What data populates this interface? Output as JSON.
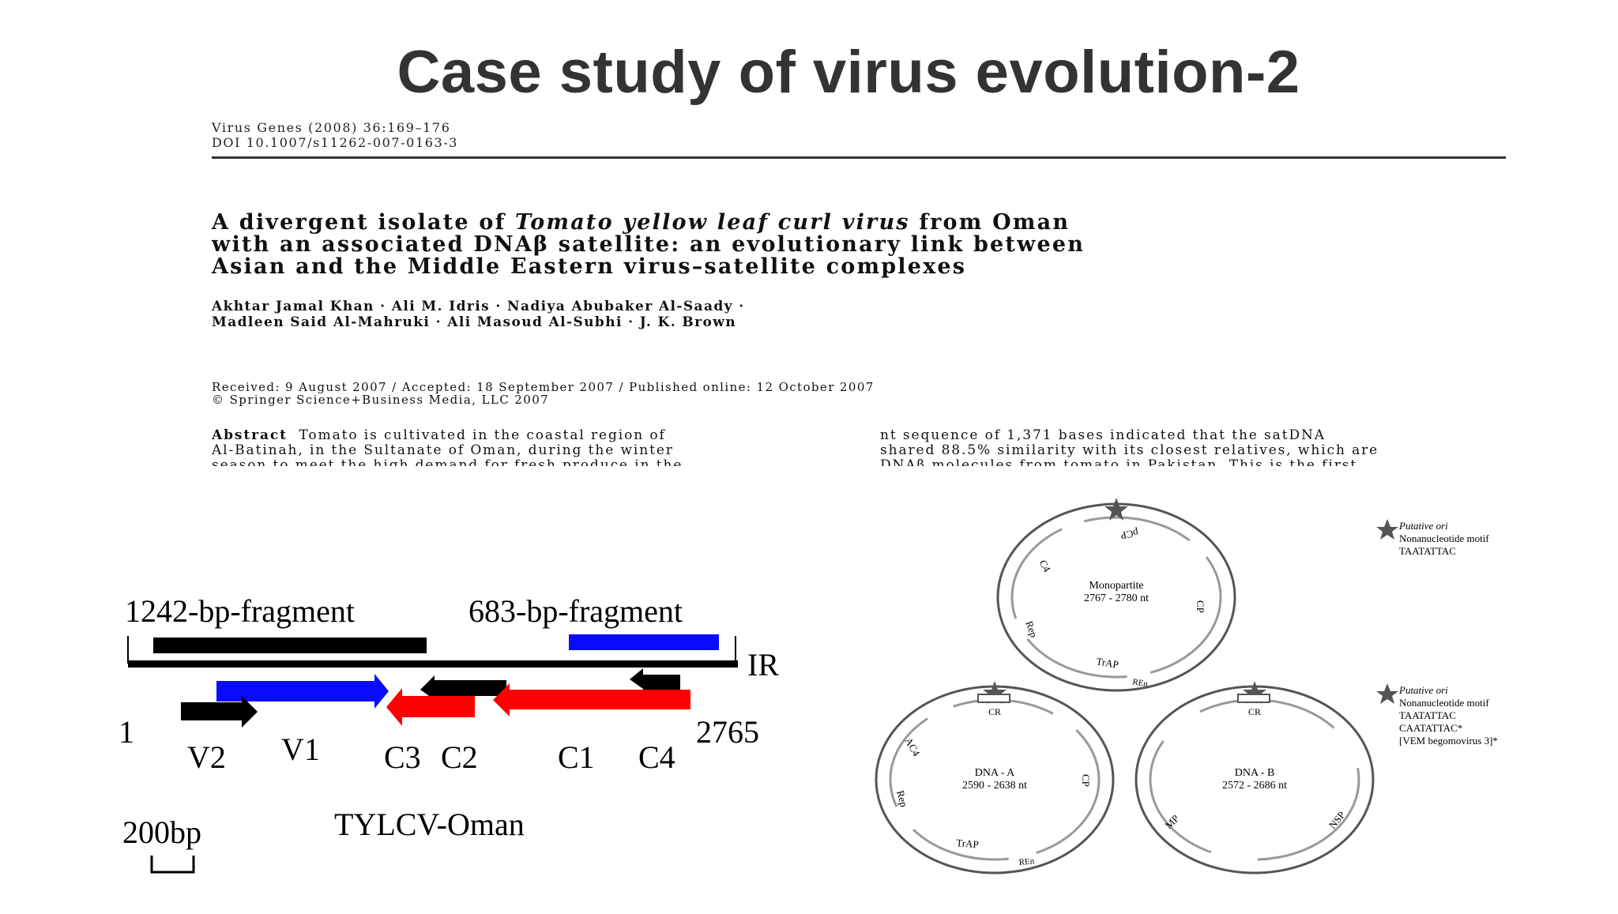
{
  "slide": {
    "title": "Case study of virus evolution-2"
  },
  "paper": {
    "journal": "Virus Genes (2008) 36:169–176",
    "doi": "DOI 10.1007/s11262-007-0163-3",
    "title_lines": [
      {
        "pre": "A divergent isolate of ",
        "italic": "Tomato yellow leaf curl virus",
        "post": " from Oman"
      },
      {
        "pre": "with an associated DNAβ satellite: an evolutionary link between",
        "italic": "",
        "post": ""
      },
      {
        "pre": "Asian and the Middle Eastern virus–satellite complexes",
        "italic": "",
        "post": ""
      }
    ],
    "authors_line1": "Akhtar Jamal Khan · Ali M. Idris · Nadiya Abubaker Al-Saady ·",
    "authors_line2": "Madleen Said Al-Mahruki · Ali Masoud Al-Subhi · J. K. Brown",
    "received": "Received: 9 August 2007 / Accepted: 18 September 2007 / Published online: 12 October 2007",
    "copyright": "© Springer Science+Business Media, LLC 2007",
    "abstract_label": "Abstract",
    "abstract_left_1": "Tomato is cultivated in the coastal region of",
    "abstract_left_2": "Al-Batinah, in the Sultanate of Oman, during the winter",
    "abstract_left_3": "season to meet the high demand for fresh produce in the",
    "abstract_right_1": "nt sequence of 1,371 bases indicated that the satDNA",
    "abstract_right_2": "shared 88.5% similarity with its closest relatives, which are",
    "abstract_right_3": "DNAβ molecules from tomato in Pakistan. This is the first"
  },
  "genome_map": {
    "fragment_1": "1242-bp-fragment",
    "fragment_2": "683-bp-fragment",
    "ir": "IR",
    "start": "1",
    "end": "2765",
    "genes": {
      "v2": "V2",
      "v1": "V1",
      "c3": "C3",
      "c2": "C2",
      "c1": "C1",
      "c4": "C4"
    },
    "name": "TYLCV-Oman",
    "scale": "200bp",
    "colors": {
      "black": "#000000",
      "blue": "#0a0aff",
      "red": "#ff0000"
    }
  },
  "genome_orgs": {
    "legend1": {
      "line1": "Putative ori",
      "line2": "Nonanucleotide motif",
      "line3": "TAATATTAC"
    },
    "legend2": {
      "line1": "Putative ori",
      "line2": "Nonanucleotide motif",
      "line3": "TAATATTAC",
      "line4": "CAATATTAC*",
      "line5": "[VEM begomovirus 3]*"
    },
    "monopartite": {
      "title": "Monopartite",
      "size": "2767 - 2780 nt",
      "genes": {
        "pcp": "pCP",
        "cp": "CP",
        "c4": "C4",
        "rep": "Rep",
        "trap": "TrAP",
        "ren": "REn"
      }
    },
    "dna_a": {
      "title": "DNA - A",
      "size": "2590 - 2638 nt",
      "cr": "CR",
      "genes": {
        "ac4": "AC4",
        "rep": "Rep",
        "cp": "CP",
        "trap": "TrAP",
        "ren": "REn"
      }
    },
    "dna_b": {
      "title": "DNA - B",
      "size": "2572 - 2686 nt",
      "cr": "CR",
      "genes": {
        "mp": "MP",
        "nsp": "NSP"
      }
    },
    "colors": {
      "circle": "#555555",
      "arrow": "#999999"
    }
  }
}
